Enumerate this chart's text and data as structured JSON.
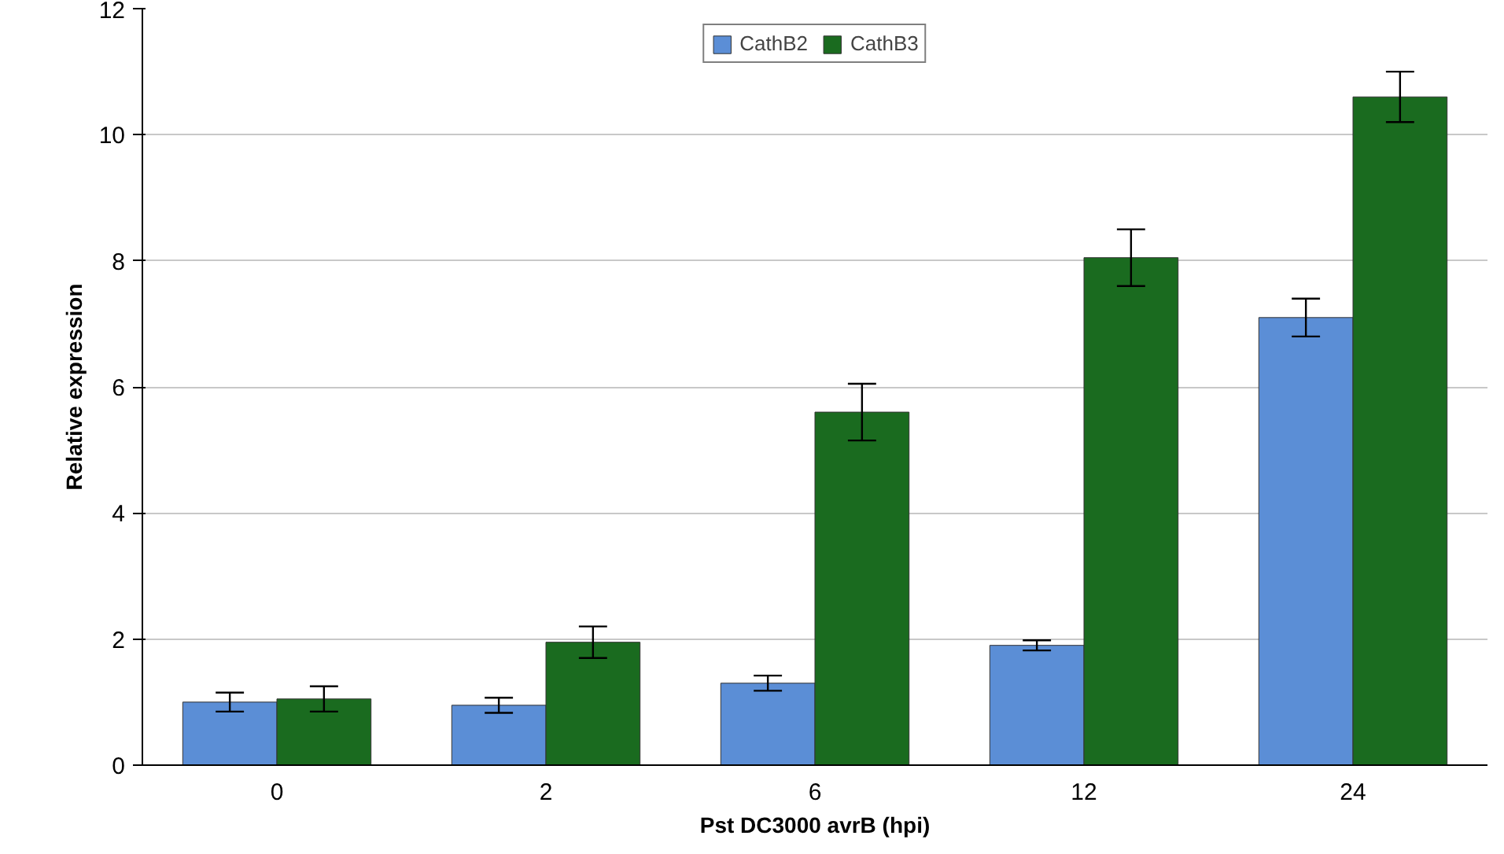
{
  "chart_data": {
    "type": "bar",
    "xlabel": "Pst DC3000 avrB (hpi)",
    "ylabel": "Relative expression",
    "categories": [
      "0",
      "2",
      "6",
      "12",
      "24"
    ],
    "series": [
      {
        "name": "CathB2",
        "color": "#5b8ed6",
        "values": [
          1.0,
          0.95,
          1.3,
          1.9,
          7.1
        ],
        "errors": [
          0.15,
          0.12,
          0.12,
          0.08,
          0.3
        ]
      },
      {
        "name": "CathB3",
        "color": "#1a6b1f",
        "values": [
          1.05,
          1.95,
          5.6,
          8.05,
          10.6
        ],
        "errors": [
          0.2,
          0.25,
          0.45,
          0.45,
          0.4
        ]
      }
    ],
    "ylim": [
      0,
      12
    ],
    "yticks": [
      0,
      2,
      4,
      6,
      8,
      10,
      12
    ],
    "grid": "y",
    "legend": "top"
  }
}
